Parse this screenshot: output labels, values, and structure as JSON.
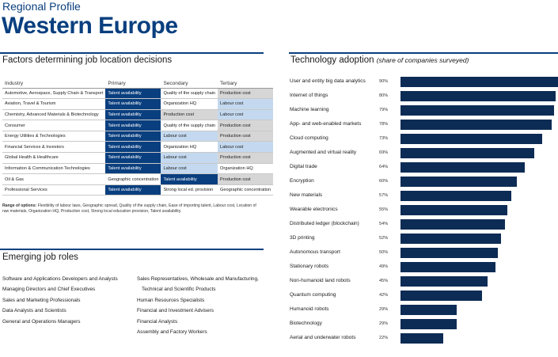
{
  "header": {
    "subtitle": "Regional Profile",
    "title": "Western Europe"
  },
  "factors": {
    "heading": "Factors determining job location decisions",
    "columns": [
      "Industry",
      "Primary",
      "Secondary",
      "Tertiary"
    ],
    "rows": [
      {
        "industry": "Automotive, Aerospace, Supply Chain & Transport",
        "primary": "Talent availability",
        "secondary": "Quality of the supply chain",
        "tertiary": "Production cost"
      },
      {
        "industry": "Aviation, Travel & Tourism",
        "primary": "Talent availability",
        "secondary": "Organization HQ",
        "tertiary": "Labour cost"
      },
      {
        "industry": "Chemistry, Advanced Materials & Biotechnology",
        "primary": "Talent availability",
        "secondary": "Production cost",
        "tertiary": "Labour cost"
      },
      {
        "industry": "Consumer",
        "primary": "Talent availability",
        "secondary": "Quality of the supply chain",
        "tertiary": "Production cost"
      },
      {
        "industry": "Energy Utilities & Technologies",
        "primary": "Talent availability",
        "secondary": "Labour cost",
        "tertiary": "Production cost"
      },
      {
        "industry": "Financial Services & Investors",
        "primary": "Talent availability",
        "secondary": "Organization HQ",
        "tertiary": "Labour cost"
      },
      {
        "industry": "Global Health & Healthcare",
        "primary": "Talent availability",
        "secondary": "Labour cost",
        "tertiary": "Production cost"
      },
      {
        "industry": "Information & Communication Technologies",
        "primary": "Talent availability",
        "secondary": "Labour cost",
        "tertiary": "Organization HQ"
      },
      {
        "industry": "Oil & Gas",
        "primary": "Geographic concentration",
        "secondary": "Talent availability",
        "tertiary": "Production cost"
      },
      {
        "industry": "Professional Services",
        "primary": "Talent availability",
        "secondary": "Strong local ed. provision",
        "tertiary": "Geographic concentration"
      }
    ],
    "note_label": "Range of options:",
    "note_text": "Flexibility of labour laws, Geographic spread, Quality of the supply chain, Ease of importing talent, Labour cost, Location of raw materials, Organization HQ, Production cost, Strong local education provision, Talent availability."
  },
  "roles": {
    "heading": "Emerging job roles",
    "left": [
      "Software and Applications Developers and Analysts",
      "Managing Directors and Chief Executives",
      "Sales and Marketing Professionals",
      "Data Analysts and Scientists",
      "General and Operations Managers"
    ],
    "right": [
      "Sales Representatives, Wholesale and Manufacturing,",
      "Technical and Scientific Products",
      "Human Resources Specialists",
      "Financial and Investment Advisers",
      "Financial Analysts",
      "Assembly and Factory Workers"
    ]
  },
  "technology": {
    "heading": "Technology adoption",
    "heading_note": "(share of companies surveyed)"
  },
  "colors": {
    "brand_blue": "#0a3f7f",
    "bar": "#0d2c55",
    "primary_cell": "#0a3f7f",
    "secondary_cell": "#c4d9ef",
    "tertiary_cell": "#d6d6d6"
  },
  "chart_data": {
    "type": "bar",
    "orientation": "horizontal",
    "title": "Technology adoption",
    "categories": [
      "User and entity big data analytics",
      "Internet of things",
      "Machine learning",
      "App- and web-enabled markets",
      "Cloud computing",
      "Augmented and virtual reality",
      "Digital trade",
      "Encryption",
      "New materials",
      "Wearable electronics",
      "Distributed ledger (blockchain)",
      "3D printing",
      "Autonomous transport",
      "Stationary robots",
      "Non-humanoid land robots",
      "Quantum computing",
      "Humanoid robots",
      "Biotechnology",
      "Aerial and underwater robots"
    ],
    "values": [
      90,
      80,
      79,
      78,
      73,
      69,
      64,
      60,
      57,
      55,
      54,
      52,
      50,
      49,
      45,
      42,
      29,
      29,
      22
    ],
    "value_labels": [
      "90%",
      "80%",
      "79%",
      "78%",
      "73%",
      "69%",
      "64%",
      "60%",
      "57%",
      "55%",
      "54%",
      "52%",
      "50%",
      "49%",
      "45%",
      "42%",
      "29%",
      "29%",
      "22%"
    ],
    "xlim": [
      0,
      100
    ],
    "grid": false,
    "legend": "none"
  }
}
